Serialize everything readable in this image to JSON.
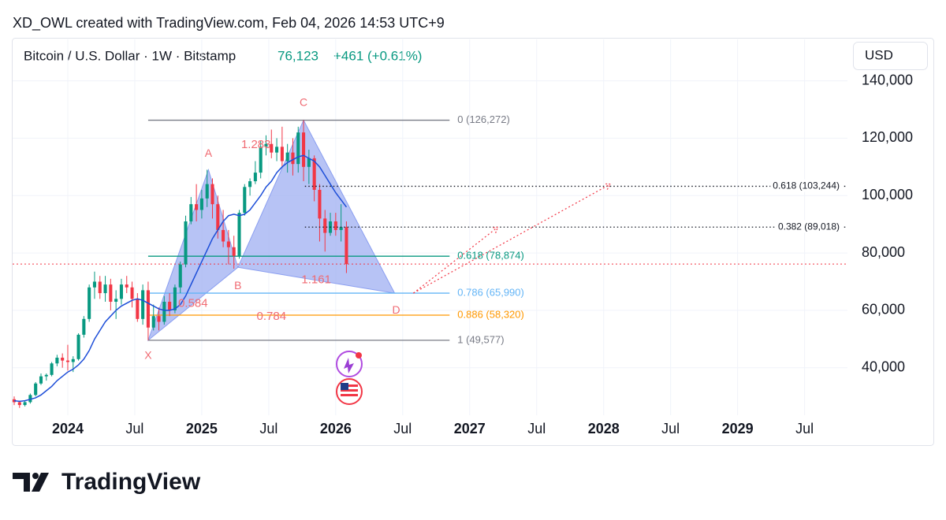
{
  "header": {
    "attribution": "XD_OWL created with TradingView.com, Feb 04, 2026 14:53 UTC+9",
    "symbol": "Bitcoin / U.S. Dollar · 1W · Bitstamp",
    "price": "76,123",
    "change": "+461 (+0.61%)",
    "currency": "USD",
    "brand": "TradingView"
  },
  "chart_data": {
    "type": "candlestick",
    "up_color": "#089981",
    "down_color": "#f23645",
    "grid": true,
    "xlim": [
      2023.6,
      2029.82
    ],
    "ylim": [
      24000,
      144000
    ],
    "xticks": [
      2024,
      {
        "value": 2024.5,
        "label": "Jul"
      },
      2025,
      {
        "value": 2025.5,
        "label": "Jul"
      },
      2026,
      {
        "value": 2026.5,
        "label": "Jul"
      },
      2027,
      {
        "value": 2027.5,
        "label": "Jul"
      },
      2028,
      {
        "value": 2028.5,
        "label": "Jul"
      },
      2029,
      {
        "value": 2029.5,
        "label": "Jul"
      }
    ],
    "yticks": [
      {
        "value": 40000,
        "label": "40,000"
      },
      {
        "value": 60000,
        "label": "60,000"
      },
      {
        "value": 80000,
        "label": "80,000"
      },
      {
        "value": 100000,
        "label": "100,000"
      },
      {
        "value": 120000,
        "label": "120,000"
      },
      {
        "value": 140000,
        "label": "140,000"
      }
    ],
    "x": [
      2023.6,
      2023.64,
      2023.68,
      2023.72,
      2023.76,
      2023.8,
      2023.84,
      2023.88,
      2023.92,
      2023.96,
      2024,
      2024.04,
      2024.08,
      2024.12,
      2024.16,
      2024.2,
      2024.24,
      2024.28,
      2024.32,
      2024.36,
      2024.4,
      2024.44,
      2024.48,
      2024.52,
      2024.56,
      2024.6,
      2024.64,
      2024.68,
      2024.72,
      2024.76,
      2024.8,
      2024.84,
      2024.88,
      2024.92,
      2024.96,
      2025,
      2025.04,
      2025.08,
      2025.12,
      2025.16,
      2025.2,
      2025.24,
      2025.28,
      2025.32,
      2025.36,
      2025.4,
      2025.44,
      2025.48,
      2025.52,
      2025.56,
      2025.6,
      2025.64,
      2025.68,
      2025.72,
      2025.76,
      2025.8,
      2025.84,
      2025.88,
      2025.92,
      2025.96,
      2026,
      2026.04,
      2026.08
    ],
    "candles": {
      "open": [
        29000,
        28000,
        27000,
        28000,
        30500,
        34500,
        37000,
        37500,
        41500,
        43500,
        42500,
        42000,
        43000,
        51500,
        57000,
        68000,
        70000,
        66000,
        69000,
        63000,
        64000,
        69000,
        68000,
        64000,
        57000,
        67000,
        54000,
        58000,
        56000,
        63000,
        60000,
        68000,
        76000,
        91000,
        97000,
        95000,
        99000,
        104000,
        97000,
        88000,
        84000,
        82000,
        79000,
        94000,
        103000,
        105000,
        108000,
        117000,
        118000,
        115000,
        117000,
        112000,
        115000,
        111000,
        122000,
        110000,
        113000,
        102000,
        92000,
        87000,
        91000,
        88000,
        89000
      ],
      "high": [
        30000,
        28500,
        28500,
        31000,
        35000,
        38000,
        38000,
        42000,
        44500,
        45000,
        48000,
        44000,
        52000,
        58000,
        69000,
        73500,
        72000,
        72000,
        71000,
        67000,
        71000,
        72000,
        70000,
        66000,
        69000,
        70000,
        62000,
        61000,
        65000,
        66000,
        69000,
        77000,
        93000,
        99500,
        104000,
        102000,
        109000,
        106000,
        100000,
        95000,
        88000,
        86000,
        95000,
        104000,
        106000,
        112000,
        119000,
        121000,
        123000,
        120000,
        124000,
        118000,
        120000,
        124000,
        126272,
        116000,
        114000,
        104000,
        95000,
        94000,
        94000,
        97000,
        91000
      ],
      "low": [
        27000,
        26000,
        26500,
        27500,
        30000,
        34000,
        35500,
        37000,
        40500,
        40000,
        39000,
        38500,
        42500,
        50500,
        56000,
        64000,
        64000,
        63000,
        60000,
        57000,
        62000,
        66000,
        61000,
        56000,
        55000,
        49577,
        53000,
        53000,
        55000,
        58000,
        59000,
        66000,
        75000,
        90000,
        91000,
        92000,
        96000,
        92000,
        85000,
        82000,
        76000,
        74500,
        78000,
        93000,
        100000,
        104000,
        106000,
        114000,
        113000,
        112000,
        110000,
        108000,
        107000,
        108000,
        105000,
        104000,
        98000,
        84000,
        80500,
        86000,
        86000,
        84000,
        73000
      ],
      "close": [
        28000,
        27000,
        28000,
        30500,
        34500,
        37000,
        37500,
        41500,
        43500,
        42500,
        42000,
        43000,
        51500,
        57000,
        68000,
        70000,
        66000,
        69000,
        63000,
        64000,
        69000,
        68000,
        64000,
        57000,
        67000,
        54000,
        58000,
        56000,
        63000,
        60000,
        68000,
        76000,
        91000,
        97000,
        95000,
        99000,
        104000,
        97000,
        88000,
        84000,
        82000,
        79000,
        94000,
        103000,
        105000,
        108000,
        117000,
        118000,
        115000,
        117000,
        112000,
        115000,
        111000,
        122000,
        110000,
        113000,
        102000,
        92000,
        87000,
        91000,
        88000,
        89000,
        76123
      ]
    },
    "ma": {
      "color": "#1d4ed8",
      "values": [
        28500,
        28300,
        28500,
        29000,
        29500,
        30500,
        32000,
        33500,
        35500,
        37000,
        38500,
        39500,
        41000,
        43000,
        46000,
        50000,
        53000,
        56000,
        58000,
        60000,
        61500,
        62500,
        63500,
        64000,
        63500,
        62500,
        61500,
        60500,
        60000,
        60000,
        60500,
        62000,
        65000,
        69000,
        73000,
        77000,
        81000,
        85000,
        88000,
        91000,
        93000,
        93500,
        93000,
        93500,
        95000,
        97500,
        100000,
        103000,
        105000,
        108000,
        110000,
        111500,
        112500,
        113500,
        114000,
        113000,
        112000,
        110000,
        107000,
        104000,
        101000,
        98500,
        96000
      ]
    },
    "pattern": {
      "color": "#f06a72",
      "fill": "#a5b4f3",
      "points": [
        {
          "label": "X",
          "x": 2024.6,
          "y": 49577
        },
        {
          "label": "A",
          "x": 2025.05,
          "y": 109000
        },
        {
          "label": "B",
          "x": 2025.27,
          "y": 75000
        },
        {
          "label": "C",
          "x": 2025.76,
          "y": 126272
        },
        {
          "label": "D",
          "x": 2026.44,
          "y": 65990
        }
      ],
      "ratios": [
        1.283,
        0.584,
        0.784,
        1.161
      ]
    },
    "fib": {
      "x": [
        2024.6,
        2026.85
      ],
      "levels": [
        {
          "price": 126272,
          "label": "0 (126,272)",
          "color": "#787b86"
        },
        {
          "price": 78874,
          "label": "0.618 (78,874)",
          "color": "#089981"
        },
        {
          "price": 65990,
          "label": "0.786 (65,990)",
          "color": "#64b5f6"
        },
        {
          "price": 58320,
          "label": "0.886 (58,320)",
          "color": "#ff9800"
        },
        {
          "price": 49577,
          "label": "1 (49,577)",
          "color": "#787b86"
        }
      ]
    },
    "targets": {
      "x": [
        2025.77,
        2029.82
      ],
      "color": "#131722",
      "levels": [
        {
          "price": 103244,
          "label": "0.618 (103,244)"
        },
        {
          "price": 89018,
          "label": "0.382 (89,018)"
        }
      ]
    },
    "projections": {
      "color": "#f23645",
      "start": [
        2026.58,
        66000
      ],
      "ends": [
        [
          2027.21,
          89000
        ],
        [
          2028.05,
          104000
        ]
      ]
    }
  }
}
